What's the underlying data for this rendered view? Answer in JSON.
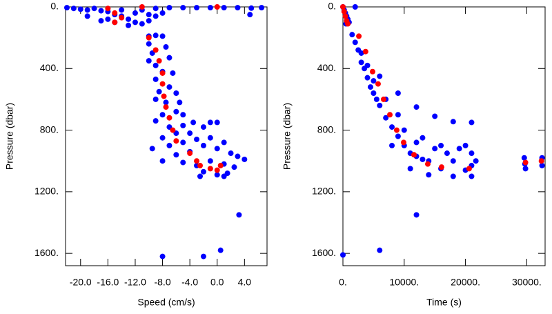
{
  "chart_data": [
    {
      "type": "scatter",
      "xlabel": "Speed (cm/s)",
      "ylabel": "Pressure (dbar)",
      "xlim": [
        -22.2,
        7.3
      ],
      "ylim": [
        0,
        1680
      ],
      "invert_y": true,
      "xticks": [
        {
          "value": -20,
          "label": "-20.0"
        },
        {
          "value": -16,
          "label": "-16.0"
        },
        {
          "value": -12,
          "label": "-12.0"
        },
        {
          "value": -8,
          "label": "-8.0"
        },
        {
          "value": -4,
          "label": "-4.0"
        },
        {
          "value": 0,
          "label": "0.0"
        },
        {
          "value": 4,
          "label": "4.0"
        }
      ],
      "yticks": [
        {
          "value": 0,
          "label": "0."
        },
        {
          "value": 400,
          "label": "400."
        },
        {
          "value": 800,
          "label": "800."
        },
        {
          "value": 1200,
          "label": "1200."
        },
        {
          "value": 1600,
          "label": "1600."
        }
      ],
      "series": [
        {
          "color": "#0000ff",
          "x": [
            -22,
            -21,
            -20,
            -19,
            -18,
            -17,
            -16,
            -15,
            -14,
            -13,
            -12,
            -11,
            -10,
            -9,
            -8,
            -17,
            -15,
            -13,
            -19,
            -11,
            -9,
            -12,
            -16,
            -14,
            -10,
            -7,
            -5,
            -3,
            -1,
            1,
            3,
            5,
            4.8,
            6.5,
            -10,
            -9,
            -8,
            -10,
            -9.5,
            -9,
            -10,
            -7.5,
            -7,
            -8,
            -9,
            -6.5,
            -8.5,
            -7,
            -6,
            -9,
            -7.5,
            -5.5,
            -8,
            -6,
            -5,
            -9,
            -7,
            -5,
            -3.5,
            -8,
            -6,
            -4,
            -2,
            -1,
            0,
            -7,
            -5,
            -3,
            -1,
            1,
            -6,
            -4,
            -2,
            0,
            2,
            3,
            4,
            -5,
            -3,
            -1,
            1,
            2.5,
            -2,
            0,
            1.5,
            -8,
            -9.5,
            -2.5,
            1,
            -8,
            -2,
            0.5,
            3.2
          ],
          "values": [
            5,
            10,
            15,
            20,
            10,
            25,
            30,
            50,
            60,
            80,
            100,
            110,
            90,
            60,
            40,
            90,
            100,
            120,
            60,
            20,
            10,
            40,
            80,
            20,
            50,
            5,
            5,
            5,
            5,
            5,
            5,
            8,
            50,
            5,
            190,
            185,
            190,
            240,
            300,
            380,
            350,
            260,
            330,
            420,
            470,
            430,
            550,
            520,
            560,
            600,
            620,
            620,
            700,
            680,
            700,
            740,
            780,
            770,
            750,
            850,
            820,
            820,
            780,
            750,
            750,
            900,
            880,
            860,
            850,
            880,
            960,
            940,
            900,
            920,
            950,
            970,
            990,
            1010,
            1030,
            1000,
            1020,
            1040,
            1070,
            1090,
            1080,
            1000,
            920,
            1100,
            1100,
            1620,
            1620,
            1580,
            1350
          ]
        },
        {
          "color": "#ff0000",
          "x": [
            -16,
            -15,
            -14,
            -15,
            -10,
            -9,
            -8.5,
            -8,
            -8,
            -7.8,
            -7.5,
            -7,
            -6.5,
            -6,
            -4,
            -3,
            -2.5,
            -1,
            0,
            0.5,
            0,
            -11
          ],
          "values": [
            10,
            40,
            70,
            100,
            200,
            280,
            350,
            430,
            500,
            580,
            650,
            720,
            800,
            870,
            950,
            1000,
            1030,
            1050,
            1060,
            1030,
            0,
            0
          ]
        }
      ]
    },
    {
      "type": "scatter",
      "xlabel": "Time (s)",
      "ylabel": "Pressure (dbar)",
      "xlim": [
        0,
        33000
      ],
      "ylim": [
        0,
        1680
      ],
      "invert_y": true,
      "xticks": [
        {
          "value": 0,
          "label": "0."
        },
        {
          "value": 10000,
          "label": "10000."
        },
        {
          "value": 20000,
          "label": "20000."
        },
        {
          "value": 30000,
          "label": "30000."
        }
      ],
      "yticks": [
        {
          "value": 0,
          "label": "0."
        },
        {
          "value": 400,
          "label": "400."
        },
        {
          "value": 800,
          "label": "800."
        },
        {
          "value": 1200,
          "label": "1200."
        },
        {
          "value": 1600,
          "label": "1600."
        }
      ],
      "series": [
        {
          "color": "#0000ff",
          "x": [
            0,
            200,
            400,
            600,
            800,
            1000,
            500,
            2000,
            1500,
            2000,
            2500,
            3000,
            3000,
            3500,
            4000,
            4000,
            4500,
            5000,
            5000,
            5500,
            6000,
            9000,
            12000,
            15000,
            18000,
            21000,
            8000,
            11000,
            14000,
            18000,
            21000,
            6000,
            7000,
            8000,
            9000,
            10000,
            11000,
            12000,
            13000,
            14000,
            15000,
            16000,
            17000,
            18000,
            19000,
            20000,
            21000,
            21000,
            20000,
            16000,
            12000,
            10000,
            7000,
            9000,
            13000,
            21700,
            29600,
            29800,
            29700,
            32500,
            32500,
            0,
            6000,
            12000
          ],
          "values": [
            0,
            20,
            40,
            60,
            80,
            100,
            110,
            0,
            180,
            230,
            280,
            300,
            360,
            400,
            380,
            460,
            520,
            480,
            560,
            600,
            450,
            560,
            650,
            710,
            745,
            750,
            900,
            1050,
            1090,
            1100,
            1100,
            640,
            720,
            780,
            840,
            900,
            950,
            970,
            990,
            1000,
            920,
            900,
            950,
            1000,
            920,
            900,
            950,
            1030,
            1060,
            1050,
            880,
            800,
            600,
            700,
            850,
            1000,
            980,
            1050,
            1020,
            980,
            1030,
            1610,
            1580,
            1350
          ]
        },
        {
          "color": "#ff0000",
          "x": [
            0,
            200,
            400,
            600,
            800,
            2600,
            3700,
            4840,
            5740,
            6640,
            7660,
            8780,
            9910,
            11600,
            13850,
            16100,
            20600,
            29800,
            32400
          ],
          "values": [
            0,
            30,
            60,
            90,
            110,
            190,
            290,
            420,
            500,
            600,
            700,
            800,
            880,
            960,
            1020,
            1040,
            1050,
            1010,
            1000
          ]
        }
      ]
    }
  ]
}
